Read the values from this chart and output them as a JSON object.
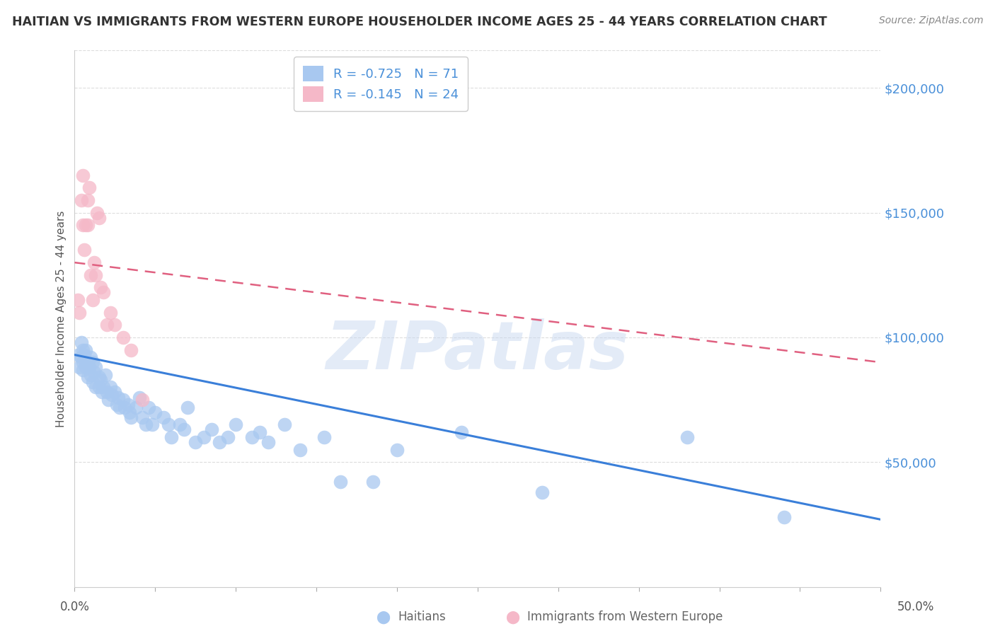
{
  "title": "HAITIAN VS IMMIGRANTS FROM WESTERN EUROPE HOUSEHOLDER INCOME AGES 25 - 44 YEARS CORRELATION CHART",
  "source": "Source: ZipAtlas.com",
  "ylabel": "Householder Income Ages 25 - 44 years",
  "ytick_labels": [
    "$50,000",
    "$100,000",
    "$150,000",
    "$200,000"
  ],
  "ytick_values": [
    50000,
    100000,
    150000,
    200000
  ],
  "ylim": [
    0,
    215000
  ],
  "xlim": [
    0.0,
    0.5
  ],
  "legend_label1": "R = -0.725   N = 71",
  "legend_label2": "R = -0.145   N = 24",
  "watermark": "ZIPatlas",
  "color_blue": "#A8C8F0",
  "color_blue_line": "#3A7FD9",
  "color_pink": "#F5B8C8",
  "color_pink_line": "#E06080",
  "color_text_blue": "#4A90D9",
  "background_color": "#FFFFFF",
  "grid_color": "#DDDDDD",
  "haitians_x": [
    0.002,
    0.003,
    0.004,
    0.004,
    0.005,
    0.005,
    0.005,
    0.006,
    0.007,
    0.007,
    0.008,
    0.008,
    0.009,
    0.01,
    0.01,
    0.011,
    0.011,
    0.012,
    0.013,
    0.013,
    0.015,
    0.015,
    0.016,
    0.017,
    0.018,
    0.019,
    0.02,
    0.021,
    0.022,
    0.023,
    0.025,
    0.026,
    0.027,
    0.028,
    0.03,
    0.031,
    0.033,
    0.034,
    0.035,
    0.038,
    0.04,
    0.042,
    0.044,
    0.046,
    0.048,
    0.05,
    0.055,
    0.058,
    0.06,
    0.065,
    0.068,
    0.07,
    0.075,
    0.08,
    0.085,
    0.09,
    0.095,
    0.1,
    0.11,
    0.115,
    0.12,
    0.13,
    0.14,
    0.155,
    0.165,
    0.185,
    0.2,
    0.24,
    0.29,
    0.38,
    0.44
  ],
  "haitians_y": [
    93000,
    88000,
    92000,
    98000,
    90000,
    87000,
    95000,
    93000,
    88000,
    95000,
    90000,
    84000,
    88000,
    92000,
    85000,
    90000,
    82000,
    86000,
    88000,
    80000,
    84000,
    80000,
    83000,
    78000,
    80000,
    85000,
    78000,
    75000,
    80000,
    77000,
    78000,
    73000,
    76000,
    72000,
    75000,
    72000,
    73000,
    70000,
    68000,
    72000,
    76000,
    68000,
    65000,
    72000,
    65000,
    70000,
    68000,
    65000,
    60000,
    65000,
    63000,
    72000,
    58000,
    60000,
    63000,
    58000,
    60000,
    65000,
    60000,
    62000,
    58000,
    65000,
    55000,
    60000,
    42000,
    42000,
    55000,
    62000,
    38000,
    60000,
    28000
  ],
  "western_x": [
    0.002,
    0.003,
    0.004,
    0.005,
    0.005,
    0.006,
    0.007,
    0.008,
    0.008,
    0.009,
    0.01,
    0.011,
    0.012,
    0.013,
    0.014,
    0.015,
    0.016,
    0.018,
    0.02,
    0.022,
    0.025,
    0.03,
    0.035,
    0.042
  ],
  "western_y": [
    115000,
    110000,
    155000,
    165000,
    145000,
    135000,
    145000,
    155000,
    145000,
    160000,
    125000,
    115000,
    130000,
    125000,
    150000,
    148000,
    120000,
    118000,
    105000,
    110000,
    105000,
    100000,
    95000,
    75000
  ],
  "blue_line_x": [
    0.0,
    0.5
  ],
  "blue_line_y": [
    93000,
    27000
  ],
  "pink_line_x": [
    0.0,
    0.5
  ],
  "pink_line_y": [
    130000,
    90000
  ]
}
